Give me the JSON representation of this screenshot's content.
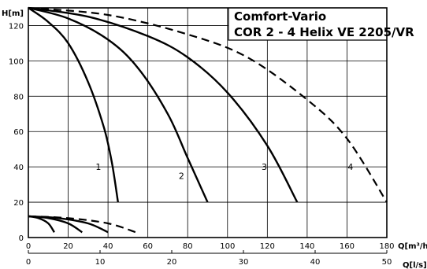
{
  "chart_data": {
    "type": "line",
    "title": "Comfort-Vario",
    "subtitle": "COR 2 - 4 Helix VE 2205/VR",
    "ylabel": "H[m]",
    "xlabel": "Q[m³/h]",
    "x2label": "Q[l/s]",
    "ylim": [
      0,
      130
    ],
    "xlim": [
      0,
      180
    ],
    "x2lim": [
      0,
      50
    ],
    "yticks": [
      0,
      20,
      40,
      60,
      80,
      100,
      120
    ],
    "xticks": [
      0,
      20,
      40,
      60,
      80,
      100,
      120,
      140,
      160,
      180
    ],
    "x2ticks": [
      0,
      10,
      20,
      30,
      40,
      50
    ],
    "grid": true,
    "series": [
      {
        "name": "1",
        "style": "solid",
        "points": [
          [
            0,
            130
          ],
          [
            10,
            122
          ],
          [
            20,
            110
          ],
          [
            30,
            88
          ],
          [
            38,
            62
          ],
          [
            42,
            42
          ],
          [
            45,
            20
          ]
        ]
      },
      {
        "name": "2",
        "style": "solid",
        "points": [
          [
            0,
            130
          ],
          [
            20,
            124
          ],
          [
            40,
            112
          ],
          [
            55,
            96
          ],
          [
            70,
            70
          ],
          [
            80,
            45
          ],
          [
            90,
            20
          ]
        ]
      },
      {
        "name": "3",
        "style": "solid",
        "points": [
          [
            0,
            130
          ],
          [
            30,
            125
          ],
          [
            60,
            114
          ],
          [
            80,
            102
          ],
          [
            100,
            82
          ],
          [
            120,
            52
          ],
          [
            135,
            20
          ]
        ]
      },
      {
        "name": "4",
        "style": "dashed",
        "points": [
          [
            0,
            130
          ],
          [
            40,
            126
          ],
          [
            80,
            115
          ],
          [
            110,
            102
          ],
          [
            140,
            78
          ],
          [
            160,
            56
          ],
          [
            180,
            20
          ]
        ]
      }
    ],
    "bottom_series": [
      {
        "style": "solid",
        "points": [
          [
            0,
            12
          ],
          [
            5,
            11
          ],
          [
            10,
            8
          ],
          [
            13,
            3
          ]
        ]
      },
      {
        "style": "solid",
        "points": [
          [
            0,
            12
          ],
          [
            10,
            11
          ],
          [
            20,
            8
          ],
          [
            27,
            3
          ]
        ]
      },
      {
        "style": "solid",
        "points": [
          [
            0,
            12
          ],
          [
            15,
            11
          ],
          [
            30,
            8
          ],
          [
            40,
            3
          ]
        ]
      },
      {
        "style": "dashed",
        "points": [
          [
            0,
            12
          ],
          [
            20,
            11
          ],
          [
            40,
            8
          ],
          [
            54,
            3
          ]
        ]
      }
    ]
  }
}
